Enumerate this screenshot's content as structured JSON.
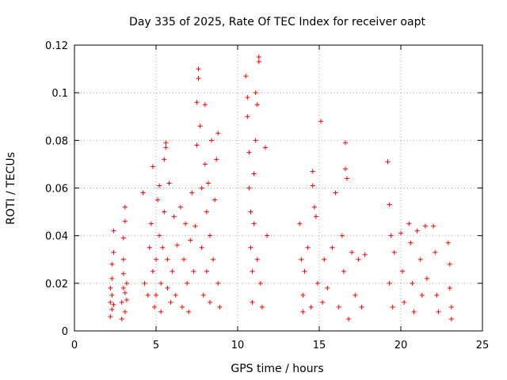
{
  "chart_data": {
    "type": "scatter",
    "title": "Day 335 of 2025, Rate Of TEC Index for receiver oapt",
    "xlabel": "GPS time / hours",
    "ylabel": "ROTI / TECUs",
    "xlim": [
      0,
      25
    ],
    "ylim": [
      0,
      0.12
    ],
    "x_ticks": [
      0,
      5,
      10,
      15,
      20,
      25
    ],
    "x_tick_labels": [
      "0",
      "5",
      "10",
      "15",
      "20",
      "25"
    ],
    "y_ticks": [
      0,
      0.02,
      0.04,
      0.06,
      0.08,
      0.1,
      0.12
    ],
    "y_tick_labels": [
      "0",
      "0.02",
      "0.04",
      "0.06",
      "0.08",
      "0.1",
      "0.12"
    ],
    "grid": true,
    "marker": "plus",
    "marker_color": "#ff0000",
    "series": [
      {
        "points": [
          [
            2.2,
            0.006
          ],
          [
            2.2,
            0.012
          ],
          [
            2.2,
            0.018
          ],
          [
            2.3,
            0.009
          ],
          [
            2.3,
            0.015
          ],
          [
            2.3,
            0.022
          ],
          [
            2.3,
            0.028
          ],
          [
            2.4,
            0.042
          ],
          [
            2.4,
            0.011
          ],
          [
            2.4,
            0.033
          ],
          [
            2.9,
            0.005
          ],
          [
            2.9,
            0.012
          ],
          [
            3.0,
            0.018
          ],
          [
            3.0,
            0.024
          ],
          [
            3.0,
            0.03
          ],
          [
            3.0,
            0.039
          ],
          [
            3.1,
            0.046
          ],
          [
            3.1,
            0.052
          ],
          [
            3.1,
            0.016
          ],
          [
            3.1,
            0.008
          ],
          [
            3.2,
            0.02
          ],
          [
            3.2,
            0.013
          ],
          [
            4.2,
            0.058
          ],
          [
            4.3,
            0.02
          ],
          [
            4.5,
            0.015
          ],
          [
            4.6,
            0.035
          ],
          [
            4.7,
            0.045
          ],
          [
            4.8,
            0.069
          ],
          [
            4.8,
            0.025
          ],
          [
            4.9,
            0.01
          ],
          [
            5.0,
            0.03
          ],
          [
            5.0,
            0.015
          ],
          [
            5.1,
            0.055
          ],
          [
            5.2,
            0.061
          ],
          [
            5.2,
            0.04
          ],
          [
            5.3,
            0.02
          ],
          [
            5.3,
            0.008
          ],
          [
            5.4,
            0.035
          ],
          [
            5.5,
            0.072
          ],
          [
            5.5,
            0.05
          ],
          [
            5.6,
            0.079
          ],
          [
            5.6,
            0.077
          ],
          [
            5.7,
            0.018
          ],
          [
            5.7,
            0.03
          ],
          [
            5.8,
            0.062
          ],
          [
            5.9,
            0.012
          ],
          [
            6.0,
            0.025
          ],
          [
            6.1,
            0.048
          ],
          [
            6.2,
            0.015
          ],
          [
            6.3,
            0.036
          ],
          [
            6.5,
            0.052
          ],
          [
            6.6,
            0.01
          ],
          [
            6.7,
            0.03
          ],
          [
            6.8,
            0.045
          ],
          [
            6.9,
            0.02
          ],
          [
            7.0,
            0.008
          ],
          [
            7.1,
            0.038
          ],
          [
            7.2,
            0.058
          ],
          [
            7.3,
            0.025
          ],
          [
            7.4,
            0.044
          ],
          [
            7.5,
            0.078
          ],
          [
            7.5,
            0.096
          ],
          [
            7.6,
            0.11
          ],
          [
            7.6,
            0.106
          ],
          [
            7.7,
            0.086
          ],
          [
            7.8,
            0.06
          ],
          [
            7.8,
            0.035
          ],
          [
            7.9,
            0.015
          ],
          [
            8.0,
            0.095
          ],
          [
            8.0,
            0.07
          ],
          [
            8.1,
            0.05
          ],
          [
            8.1,
            0.025
          ],
          [
            8.2,
            0.062
          ],
          [
            8.3,
            0.04
          ],
          [
            8.3,
            0.012
          ],
          [
            8.4,
            0.08
          ],
          [
            8.5,
            0.03
          ],
          [
            8.6,
            0.055
          ],
          [
            8.7,
            0.072
          ],
          [
            8.8,
            0.083
          ],
          [
            8.8,
            0.02
          ],
          [
            8.9,
            0.01
          ],
          [
            10.5,
            0.107
          ],
          [
            10.6,
            0.098
          ],
          [
            10.6,
            0.09
          ],
          [
            10.7,
            0.075
          ],
          [
            10.7,
            0.06
          ],
          [
            10.8,
            0.05
          ],
          [
            10.8,
            0.035
          ],
          [
            10.9,
            0.025
          ],
          [
            10.9,
            0.012
          ],
          [
            11.0,
            0.066
          ],
          [
            11.0,
            0.045
          ],
          [
            11.1,
            0.1
          ],
          [
            11.1,
            0.08
          ],
          [
            11.2,
            0.095
          ],
          [
            11.2,
            0.03
          ],
          [
            11.3,
            0.115
          ],
          [
            11.3,
            0.113
          ],
          [
            11.4,
            0.02
          ],
          [
            11.5,
            0.01
          ],
          [
            11.7,
            0.077
          ],
          [
            11.8,
            0.04
          ],
          [
            13.8,
            0.045
          ],
          [
            13.9,
            0.03
          ],
          [
            14.0,
            0.015
          ],
          [
            14.0,
            0.008
          ],
          [
            14.1,
            0.025
          ],
          [
            14.3,
            0.035
          ],
          [
            14.5,
            0.01
          ],
          [
            14.6,
            0.067
          ],
          [
            14.6,
            0.061
          ],
          [
            14.7,
            0.052
          ],
          [
            14.8,
            0.048
          ],
          [
            14.9,
            0.02
          ],
          [
            15.1,
            0.088
          ],
          [
            15.2,
            0.012
          ],
          [
            15.3,
            0.03
          ],
          [
            15.5,
            0.018
          ],
          [
            15.8,
            0.035
          ],
          [
            16.0,
            0.058
          ],
          [
            16.2,
            0.01
          ],
          [
            16.4,
            0.04
          ],
          [
            16.5,
            0.025
          ],
          [
            16.6,
            0.079
          ],
          [
            16.6,
            0.068
          ],
          [
            16.7,
            0.064
          ],
          [
            16.8,
            0.005
          ],
          [
            17.0,
            0.033
          ],
          [
            17.2,
            0.015
          ],
          [
            17.4,
            0.03
          ],
          [
            17.6,
            0.01
          ],
          [
            17.8,
            0.032
          ],
          [
            19.2,
            0.071
          ],
          [
            19.3,
            0.053
          ],
          [
            19.3,
            0.02
          ],
          [
            19.4,
            0.04
          ],
          [
            19.5,
            0.01
          ],
          [
            19.6,
            0.033
          ],
          [
            20.0,
            0.041
          ],
          [
            20.1,
            0.025
          ],
          [
            20.2,
            0.012
          ],
          [
            20.5,
            0.045
          ],
          [
            20.6,
            0.037
          ],
          [
            20.7,
            0.02
          ],
          [
            20.8,
            0.008
          ],
          [
            21.0,
            0.042
          ],
          [
            21.2,
            0.03
          ],
          [
            21.3,
            0.015
          ],
          [
            21.5,
            0.044
          ],
          [
            21.6,
            0.022
          ],
          [
            22.0,
            0.044
          ],
          [
            22.1,
            0.033
          ],
          [
            22.2,
            0.015
          ],
          [
            22.3,
            0.008
          ],
          [
            22.9,
            0.037
          ],
          [
            23.0,
            0.028
          ],
          [
            23.0,
            0.018
          ],
          [
            23.1,
            0.01
          ],
          [
            23.1,
            0.005
          ]
        ]
      }
    ]
  }
}
